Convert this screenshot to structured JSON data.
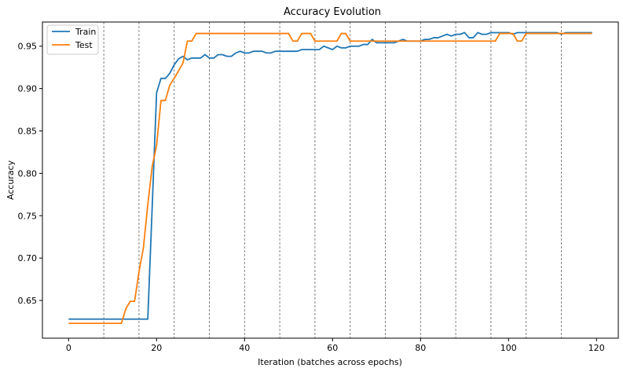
{
  "chart_data": {
    "type": "line",
    "title": "Accuracy Evolution",
    "xlabel": "Iteration (batches across epochs)",
    "ylabel": "Accuracy",
    "xlim": [
      -5.95,
      124.95
    ],
    "ylim": [
      0.6055,
      0.9785
    ],
    "xticks": [
      0,
      20,
      40,
      60,
      80,
      100,
      120
    ],
    "yticks": [
      0.65,
      0.7,
      0.75,
      0.8,
      0.85,
      0.9,
      0.95
    ],
    "ytick_labels": [
      "0.65",
      "0.70",
      "0.75",
      "0.80",
      "0.85",
      "0.90",
      "0.95"
    ],
    "vlines": [
      8,
      16,
      24,
      32,
      40,
      48,
      56,
      64,
      72,
      80,
      88,
      96,
      104,
      112
    ],
    "grid": false,
    "legend_position": "top-left",
    "series": [
      {
        "name": "Train",
        "color": "#1f77b4",
        "x": [
          0,
          18,
          19,
          20,
          21,
          22,
          23,
          24,
          25,
          26,
          27,
          28,
          29,
          30,
          31,
          32,
          33,
          34,
          35,
          36,
          37,
          38,
          39,
          40,
          41,
          42,
          43,
          44,
          45,
          46,
          47,
          48,
          49,
          50,
          51,
          52,
          53,
          54,
          55,
          56,
          57,
          58,
          59,
          60,
          61,
          62,
          63,
          64,
          65,
          66,
          67,
          68,
          69,
          70,
          71,
          72,
          73,
          74,
          75,
          76,
          77,
          78,
          79,
          80,
          81,
          82,
          83,
          84,
          85,
          86,
          87,
          88,
          89,
          90,
          91,
          92,
          93,
          94,
          95,
          96,
          97,
          98,
          99,
          100,
          101,
          102,
          103,
          104,
          105,
          106,
          107,
          108,
          109,
          110,
          111,
          112,
          113,
          114,
          115,
          116,
          117,
          118,
          119
        ],
        "y": [
          0.628,
          0.628,
          0.76,
          0.895,
          0.912,
          0.912,
          0.918,
          0.928,
          0.935,
          0.938,
          0.934,
          0.936,
          0.936,
          0.936,
          0.94,
          0.936,
          0.936,
          0.94,
          0.94,
          0.938,
          0.938,
          0.942,
          0.944,
          0.942,
          0.942,
          0.944,
          0.944,
          0.944,
          0.942,
          0.942,
          0.944,
          0.944,
          0.944,
          0.944,
          0.944,
          0.944,
          0.946,
          0.946,
          0.946,
          0.946,
          0.946,
          0.95,
          0.948,
          0.946,
          0.95,
          0.948,
          0.948,
          0.95,
          0.95,
          0.95,
          0.952,
          0.952,
          0.958,
          0.954,
          0.954,
          0.954,
          0.954,
          0.954,
          0.956,
          0.958,
          0.956,
          0.956,
          0.956,
          0.956,
          0.958,
          0.958,
          0.96,
          0.96,
          0.962,
          0.964,
          0.962,
          0.964,
          0.964,
          0.966,
          0.96,
          0.96,
          0.966,
          0.964,
          0.964,
          0.966,
          0.966,
          0.966,
          0.966,
          0.966,
          0.964,
          0.966,
          0.966,
          0.966,
          0.966,
          0.966,
          0.966,
          0.966,
          0.966,
          0.966,
          0.966,
          0.964,
          0.966,
          0.966,
          0.966,
          0.966,
          0.966,
          0.966,
          0.966
        ]
      },
      {
        "name": "Test",
        "color": "#ff7f0e",
        "x": [
          0,
          12,
          13,
          14,
          15,
          16,
          17,
          18,
          19,
          20,
          21,
          22,
          23,
          24,
          25,
          26,
          27,
          28,
          29,
          30,
          31,
          50,
          51,
          52,
          53,
          54,
          55,
          56,
          57,
          58,
          59,
          60,
          61,
          62,
          63,
          64,
          65,
          66,
          67,
          68,
          69,
          70,
          71,
          72,
          73,
          74,
          75,
          97,
          98,
          99,
          100,
          101,
          102,
          103,
          104,
          105,
          106,
          107,
          108,
          109,
          110,
          111,
          112,
          113,
          114,
          115,
          116,
          117,
          118,
          119
        ],
        "y": [
          0.623,
          0.623,
          0.64,
          0.649,
          0.649,
          0.684,
          0.712,
          0.763,
          0.808,
          0.833,
          0.886,
          0.886,
          0.904,
          0.912,
          0.921,
          0.93,
          0.956,
          0.956,
          0.965,
          0.965,
          0.965,
          0.965,
          0.956,
          0.956,
          0.965,
          0.965,
          0.965,
          0.956,
          0.956,
          0.956,
          0.956,
          0.956,
          0.956,
          0.965,
          0.965,
          0.956,
          0.956,
          0.956,
          0.956,
          0.956,
          0.956,
          0.956,
          0.956,
          0.956,
          0.956,
          0.956,
          0.956,
          0.956,
          0.965,
          0.965,
          0.965,
          0.965,
          0.956,
          0.956,
          0.965,
          0.965,
          0.965,
          0.965,
          0.965,
          0.965,
          0.965,
          0.965,
          0.965,
          0.965,
          0.965,
          0.965,
          0.965,
          0.965,
          0.965,
          0.965
        ]
      }
    ]
  }
}
